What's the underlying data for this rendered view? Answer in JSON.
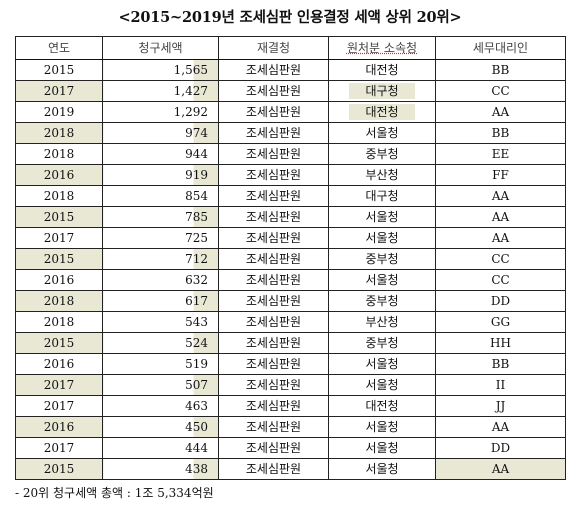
{
  "title": "<2015~2019년 조세심판 인용결정 세액 상위 20위>",
  "headers": [
    "연도",
    "청구세액",
    "재결청",
    "원처분 소속청",
    "세무대리인"
  ],
  "rows": [
    [
      "2015",
      "1,565",
      "조세심판원",
      "대전청",
      "BB"
    ],
    [
      "2017",
      "1,427",
      "조세심판원",
      "대구청",
      "CC"
    ],
    [
      "2019",
      "1,292",
      "조세심판원",
      "대전청",
      "AA"
    ],
    [
      "2018",
      "974",
      "조세심판원",
      "서울청",
      "BB"
    ],
    [
      "2018",
      "944",
      "조세심판원",
      "중부청",
      "EE"
    ],
    [
      "2016",
      "919",
      "조세심판원",
      "부산청",
      "FF"
    ],
    [
      "2018",
      "854",
      "조세심판원",
      "대구청",
      "AA"
    ],
    [
      "2015",
      "785",
      "조세심판원",
      "서울청",
      "AA"
    ],
    [
      "2017",
      "725",
      "조세심판원",
      "서울청",
      "AA"
    ],
    [
      "2015",
      "712",
      "조세심판원",
      "중부청",
      "CC"
    ],
    [
      "2016",
      "632",
      "조세심판원",
      "서울청",
      "CC"
    ],
    [
      "2018",
      "617",
      "조세심판원",
      "중부청",
      "DD"
    ],
    [
      "2018",
      "543",
      "조세심판원",
      "부산청",
      "GG"
    ],
    [
      "2015",
      "524",
      "조세심판원",
      "중부청",
      "HH"
    ],
    [
      "2016",
      "519",
      "조세심판원",
      "서울청",
      "BB"
    ],
    [
      "2017",
      "507",
      "조세심판원",
      "서울청",
      "II"
    ],
    [
      "2017",
      "463",
      "조세심판원",
      "대전청",
      "JJ"
    ],
    [
      "2016",
      "450",
      "조세심판원",
      "서울청",
      "AA"
    ],
    [
      "2017",
      "444",
      "조세심판원",
      "서울청",
      "DD"
    ],
    [
      "2015",
      "438",
      "조세심판원",
      "서울청",
      "AA"
    ]
  ],
  "footnote": "- 20위 청구세액 총액 : 1조 5,334억원"
}
